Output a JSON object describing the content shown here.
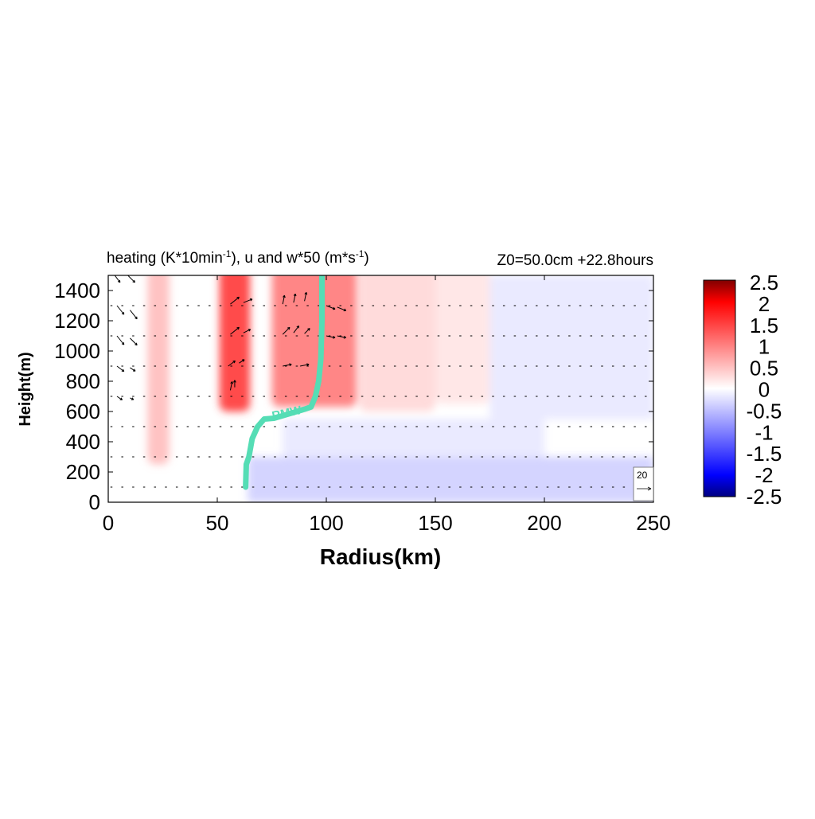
{
  "chart_data": {
    "type": "heatmap",
    "title_left_main": "heating (K*10min",
    "title_left_sup1": "-1",
    "title_left_mid": "), u and w*50 (m*s",
    "title_left_sup2": "-1",
    "title_left_end": ")",
    "title_right": "Z0=50.0cm  +22.8hours",
    "xlabel": "Radius(km)",
    "ylabel": "Height(m)",
    "xlim": [
      0,
      250
    ],
    "ylim": [
      0,
      1500
    ],
    "xticks": [
      0,
      50,
      100,
      150,
      200,
      250
    ],
    "yticks": [
      0,
      200,
      400,
      600,
      800,
      1000,
      1200,
      1400
    ],
    "colorbar": {
      "range": [
        -2.5,
        2.5
      ],
      "ticks": [
        "2.5",
        "2",
        "1.5",
        "1",
        "0.5",
        "0",
        "-0.5",
        "-1",
        "-1.5",
        "-2",
        "-2.5"
      ],
      "colors": [
        "#000080",
        "#0000ff",
        "#8080ff",
        "#ffffff",
        "#ff8080",
        "#ff0000",
        "#800000"
      ]
    },
    "heating_bands": [
      {
        "x0": 18,
        "x1": 28,
        "amp": 0.5,
        "zmin": 250
      },
      {
        "x0": 51,
        "x1": 65,
        "amp": 1.5,
        "zmin": 600
      },
      {
        "x0": 75,
        "x1": 114,
        "amp": 1.0,
        "zmin": 630
      },
      {
        "x0": 115,
        "x1": 150,
        "amp": 0.3,
        "zmin": 600
      },
      {
        "x0": 150,
        "x1": 175,
        "amp": 0.2,
        "zmin": 650
      }
    ],
    "cooling_regions": [
      {
        "x0": 64,
        "x1": 250,
        "z0": 0,
        "z1": 300,
        "amp": -0.4
      },
      {
        "x0": 80,
        "x1": 200,
        "z0": 300,
        "z1": 550,
        "amp": -0.2
      },
      {
        "x0": 175,
        "x1": 250,
        "z0": 550,
        "z1": 1500,
        "amp": -0.2
      }
    ],
    "rmw_label": "RMW",
    "rmw_line": {
      "color": "#55ddb5",
      "points": [
        [
          63,
          100
        ],
        [
          63.3,
          250
        ],
        [
          64.5,
          300
        ],
        [
          66,
          420
        ],
        [
          68.5,
          500
        ],
        [
          71.5,
          550
        ],
        [
          76,
          555
        ],
        [
          90,
          615
        ],
        [
          93,
          630
        ],
        [
          95,
          700
        ],
        [
          96.5,
          800
        ],
        [
          97.5,
          950
        ],
        [
          98,
          1200
        ],
        [
          98,
          1500
        ]
      ]
    },
    "vector_levels": [
      100,
      300,
      500,
      700,
      900,
      1100,
      1300,
      1500
    ],
    "vector_samples": [
      [
        3,
        1500,
        3,
        -4
      ],
      [
        9,
        1500,
        4,
        -4
      ],
      [
        4,
        1300,
        4,
        -5
      ],
      [
        10,
        1270,
        4,
        -5
      ],
      [
        4,
        1100,
        4,
        -5
      ],
      [
        10,
        1085,
        4,
        -4
      ],
      [
        4,
        900,
        4,
        -3
      ],
      [
        10,
        890,
        3,
        -2
      ],
      [
        4,
        700,
        3,
        -2
      ],
      [
        10,
        690,
        2,
        -1
      ],
      [
        56,
        1310,
        5,
        4
      ],
      [
        62,
        1320,
        5,
        2
      ],
      [
        56,
        1110,
        5,
        4
      ],
      [
        62,
        1120,
        4,
        2
      ],
      [
        55,
        900,
        4,
        3
      ],
      [
        60,
        920,
        3,
        2
      ],
      [
        56,
        740,
        1,
        5
      ],
      [
        58,
        760,
        0,
        4
      ],
      [
        80,
        1310,
        1,
        5
      ],
      [
        85,
        1320,
        1,
        5
      ],
      [
        90,
        1330,
        1,
        5
      ],
      [
        80,
        1110,
        4,
        4
      ],
      [
        85,
        1120,
        3,
        4
      ],
      [
        90,
        1115,
        3,
        3
      ],
      [
        80,
        900,
        5,
        1
      ],
      [
        88,
        900,
        5,
        1
      ],
      [
        100,
        1300,
        5,
        -2
      ],
      [
        105,
        1290,
        5,
        -2
      ],
      [
        100,
        1100,
        5,
        -1
      ],
      [
        105,
        1100,
        5,
        -1
      ]
    ],
    "reference_vector": {
      "label": "20",
      "length_ms": 20
    }
  }
}
